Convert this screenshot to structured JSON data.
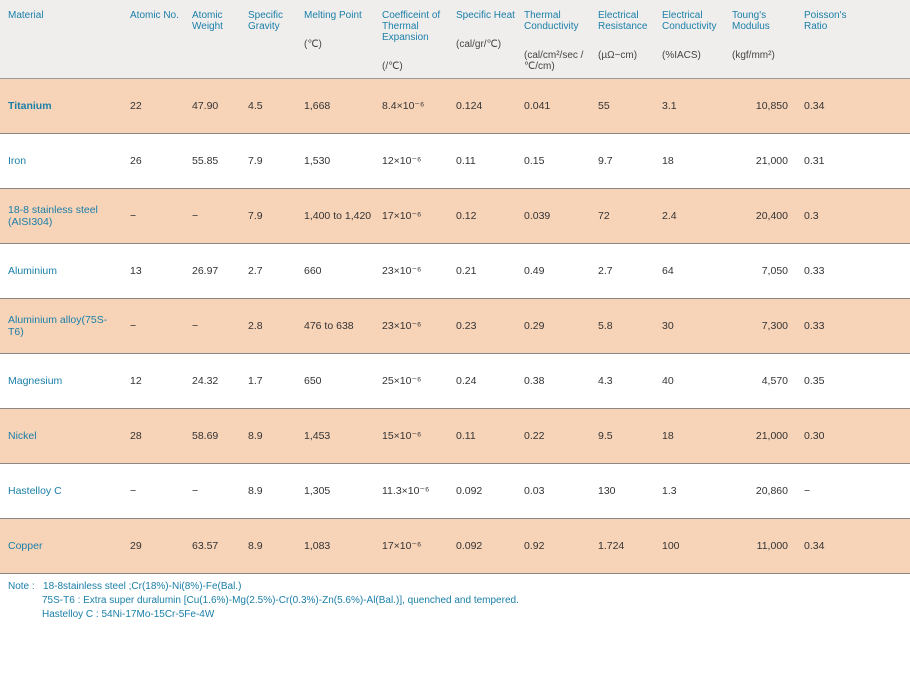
{
  "colors": {
    "header_bg": "#f0eeed",
    "stripe_bg": "#f7d3b8",
    "header_text": "#1a7fa8",
    "material_text": "#1a7fa8",
    "border": "#888888",
    "body_text": "#333333"
  },
  "columns": [
    {
      "label": "Material",
      "unit": ""
    },
    {
      "label": "Atomic No.",
      "unit": ""
    },
    {
      "label": "Atomic Weight",
      "unit": ""
    },
    {
      "label": "Specific Gravity",
      "unit": ""
    },
    {
      "label": "Melting Point",
      "unit": "(℃)"
    },
    {
      "label": "Coefficeint of Thermal Expansion",
      "unit": "(/℃)"
    },
    {
      "label": "Specific Heat",
      "unit": "(cal/gr/℃)"
    },
    {
      "label": "Thermal Conductivity",
      "unit": "(cal/cm²/sec /℃/cm)"
    },
    {
      "label": "Electrical Resistance",
      "unit": "(µΩ−cm)"
    },
    {
      "label": "Electrical Conductivity",
      "unit": "(%IACS)"
    },
    {
      "label": "Toung's Modulus",
      "unit": "(kgf/mm²)"
    },
    {
      "label": "Poisson's Ratio",
      "unit": ""
    }
  ],
  "rows": [
    {
      "material": "Titanium",
      "bold": true,
      "striped": true,
      "atomic_no": "22",
      "atomic_wt": "47.90",
      "sg": "4.5",
      "mp": "1,668",
      "cte": "8.4×10⁻⁶",
      "sh": "0.124",
      "tc": "0.041",
      "er": "55",
      "ec": "3.1",
      "ym": "10,850",
      "pr": "0.34"
    },
    {
      "material": "Iron",
      "bold": false,
      "striped": false,
      "atomic_no": "26",
      "atomic_wt": "55.85",
      "sg": "7.9",
      "mp": "1,530",
      "cte": "12×10⁻⁶",
      "sh": "0.11",
      "tc": "0.15",
      "er": "9.7",
      "ec": "18",
      "ym": "21,000",
      "pr": "0.31"
    },
    {
      "material": "18-8 stainless steel (AISI304)",
      "bold": false,
      "striped": true,
      "atomic_no": "−",
      "atomic_wt": "−",
      "sg": "7.9",
      "mp": "1,400 to 1,420",
      "cte": "17×10⁻⁶",
      "sh": "0.12",
      "tc": "0.039",
      "er": "72",
      "ec": "2.4",
      "ym": "20,400",
      "pr": "0.3"
    },
    {
      "material": "Aluminium",
      "bold": false,
      "striped": false,
      "atomic_no": "13",
      "atomic_wt": "26.97",
      "sg": "2.7",
      "mp": "660",
      "cte": "23×10⁻⁶",
      "sh": "0.21",
      "tc": "0.49",
      "er": "2.7",
      "ec": "64",
      "ym": "7,050",
      "pr": "0.33"
    },
    {
      "material": "Aluminium alloy(75S-T6)",
      "bold": false,
      "striped": true,
      "atomic_no": "−",
      "atomic_wt": "−",
      "sg": "2.8",
      "mp": "476 to 638",
      "cte": "23×10⁻⁶",
      "sh": "0.23",
      "tc": "0.29",
      "er": "5.8",
      "ec": "30",
      "ym": "7,300",
      "pr": "0.33"
    },
    {
      "material": "Magnesium",
      "bold": false,
      "striped": false,
      "atomic_no": "12",
      "atomic_wt": "24.32",
      "sg": "1.7",
      "mp": "650",
      "cte": "25×10⁻⁶",
      "sh": "0.24",
      "tc": "0.38",
      "er": "4.3",
      "ec": "40",
      "ym": "4,570",
      "pr": "0.35"
    },
    {
      "material": "Nickel",
      "bold": false,
      "striped": true,
      "atomic_no": "28",
      "atomic_wt": "58.69",
      "sg": "8.9",
      "mp": "1,453",
      "cte": "15×10⁻⁶",
      "sh": "0.11",
      "tc": "0.22",
      "er": "9.5",
      "ec": "18",
      "ym": "21,000",
      "pr": "0.30"
    },
    {
      "material": "Hastelloy C",
      "bold": false,
      "striped": false,
      "atomic_no": "−",
      "atomic_wt": "−",
      "sg": "8.9",
      "mp": "1,305",
      "cte": "11.3×10⁻⁶",
      "sh": "0.092",
      "tc": "0.03",
      "er": "130",
      "ec": "1.3",
      "ym": "20,860",
      "pr": "−"
    },
    {
      "material": "Copper",
      "bold": false,
      "striped": true,
      "atomic_no": "29",
      "atomic_wt": "63.57",
      "sg": "8.9",
      "mp": "1,083",
      "cte": "17×10⁻⁶",
      "sh": "0.092",
      "tc": "0.92",
      "er": "1.724",
      "ec": "100",
      "ym": "11,000",
      "pr": "0.34"
    }
  ],
  "notes": {
    "prefix": "Note :",
    "line1": "18-8stainless steel ;Cr(18%)-Ni(8%)-Fe(Bal.)",
    "line2": "75S-T6 : Extra super duralumin [Cu(1.6%)-Mg(2.5%)-Cr(0.3%)-Zn(5.6%)-Al(Bal.)], quenched and tempered.",
    "line3": "Hastelloy C : 54Ni-17Mo-15Cr-5Fe-4W"
  }
}
